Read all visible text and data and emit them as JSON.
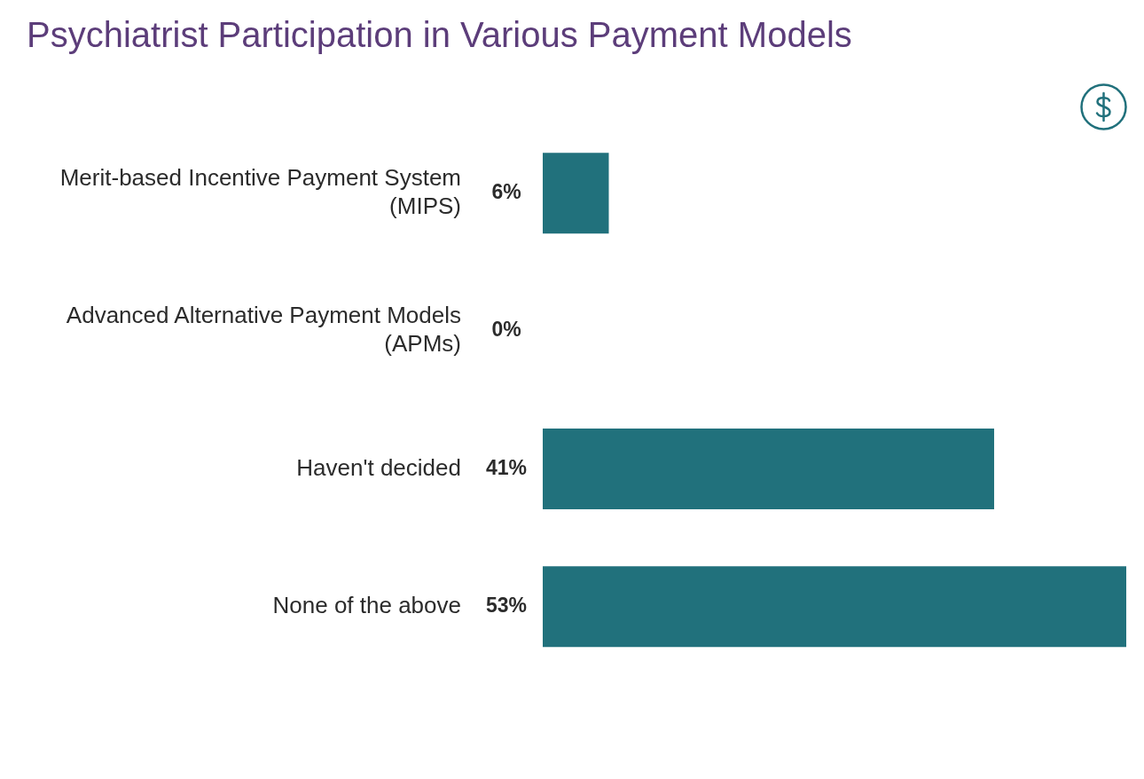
{
  "chart_data": {
    "type": "bar",
    "orientation": "horizontal",
    "title": "Psychiatrist Participation in Various Payment Models",
    "categories": [
      "Merit-based Incentive Payment System\n(MIPS)",
      "Advanced Alternative Payment Models\n(APMs)",
      "Haven't decided",
      "None of the above"
    ],
    "values": [
      6,
      0,
      41,
      53
    ],
    "color": "#21717c",
    "value_labels": [
      "6%",
      "0%",
      "41%",
      "53%"
    ]
  }
}
